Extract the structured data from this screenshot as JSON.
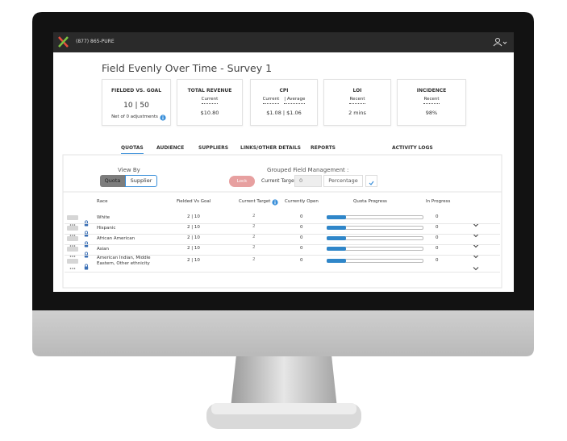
{
  "header": {
    "phone": "(877) 865-PURE"
  },
  "title": "Field Evenly Over Time - Survey 1",
  "cards": [
    {
      "title": "FIELDED VS. GOAL",
      "labels": [],
      "value": "10 | 50",
      "note": "Net of 0 adjustments"
    },
    {
      "title": "TOTAL REVENUE",
      "labels": [
        "Current"
      ],
      "value": "$10.80"
    },
    {
      "title": "CPI",
      "labels": [
        "Current",
        "| Average"
      ],
      "value": "$1.08 | $1.06"
    },
    {
      "title": "LOI",
      "labels": [
        "Recent"
      ],
      "value": "2 mins"
    },
    {
      "title": "INCIDENCE",
      "labels": [
        "Recent"
      ],
      "value": "98%"
    }
  ],
  "tabs": [
    "QUOTAS",
    "AUDIENCE",
    "SUPPLIERS",
    "LINKS/OTHER DETAILS",
    "REPORTS",
    "ACTIVITY LOGS"
  ],
  "view_by": {
    "label": "View By",
    "options": [
      "Quota",
      "Supplier"
    ]
  },
  "group": {
    "label": "Grouped Field Management :",
    "lock": "Lock",
    "target_label": "Current Target",
    "target_value": "0",
    "mode": "Percentage"
  },
  "table": {
    "columns": [
      "Race",
      "Fielded Vs Goal",
      "Current Target",
      "Currently Open",
      "Quota Progress",
      "In Progress"
    ],
    "rows": [
      {
        "name": "White",
        "fielded": "2 | 10",
        "target": "2",
        "open": "0",
        "progress": 20,
        "in_progress": "0"
      },
      {
        "name": "Hispanic",
        "fielded": "2 | 10",
        "target": "2",
        "open": "0",
        "progress": 20,
        "in_progress": "0"
      },
      {
        "name": "African American",
        "fielded": "2 | 10",
        "target": "2",
        "open": "0",
        "progress": 20,
        "in_progress": "0"
      },
      {
        "name": "Asian",
        "fielded": "2 | 10",
        "target": "2",
        "open": "0",
        "progress": 20,
        "in_progress": "0"
      },
      {
        "name": "American Indian, Middle Eastern, Other ethnicity",
        "fielded": "2 | 10",
        "target": "2",
        "open": "0",
        "progress": 20,
        "in_progress": "0"
      }
    ]
  }
}
